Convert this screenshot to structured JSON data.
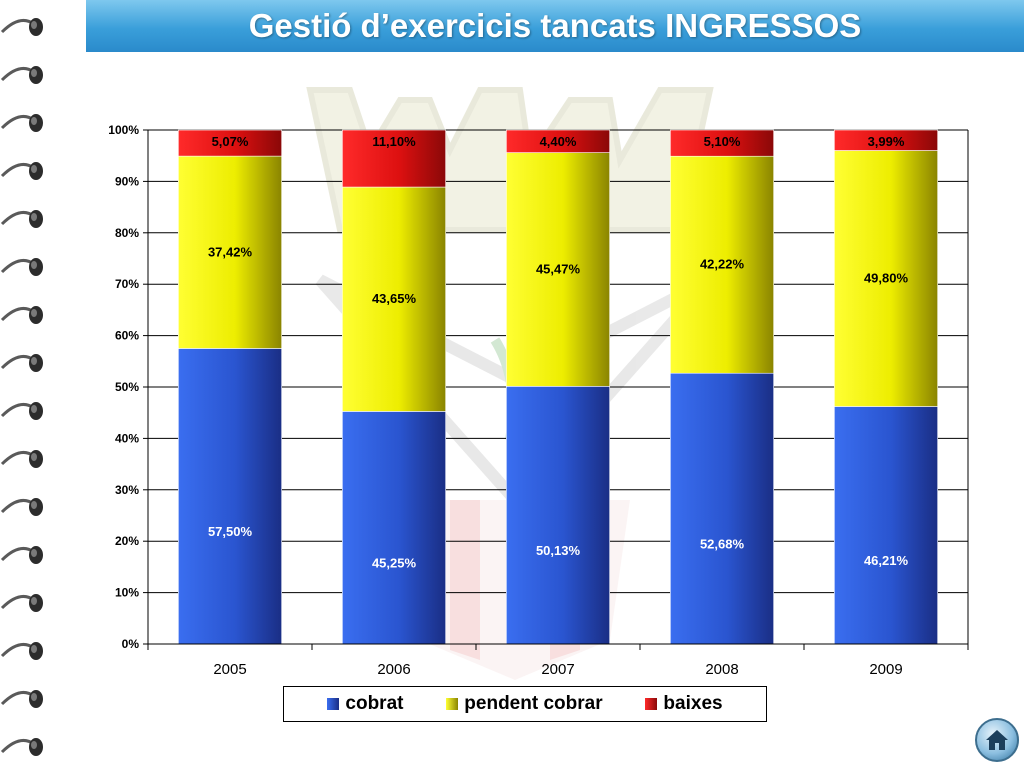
{
  "title": "Gestió d’exercicis tancats INGRESSOS",
  "colors": {
    "cobrat": "#2a55d0",
    "pendent": "#f2f200",
    "baixes": "#e01010",
    "title_bar": "#3a9fda"
  },
  "icons": {
    "home": "home-icon"
  },
  "chart_data": {
    "type": "bar",
    "stacked": true,
    "normalized": true,
    "categories": [
      "2005",
      "2006",
      "2007",
      "2008",
      "2009"
    ],
    "series": [
      {
        "name": "cobrat",
        "values": [
          57.5,
          45.25,
          50.13,
          52.68,
          46.21
        ],
        "labels": [
          "57,50%",
          "45,25%",
          "50,13%",
          "52,68%",
          "46,21%"
        ]
      },
      {
        "name": "pendent cobrar",
        "values": [
          37.42,
          43.65,
          45.47,
          42.22,
          49.8
        ],
        "labels": [
          "37,42%",
          "43,65%",
          "45,47%",
          "42,22%",
          "49,80%"
        ]
      },
      {
        "name": "baixes",
        "values": [
          5.07,
          11.1,
          4.4,
          5.1,
          3.99
        ],
        "labels": [
          "5,07%",
          "11,10%",
          "4,40%",
          "5,10%",
          "3,99%"
        ]
      }
    ],
    "y_ticks": [
      "0%",
      "10%",
      "20%",
      "30%",
      "40%",
      "50%",
      "60%",
      "70%",
      "80%",
      "90%",
      "100%"
    ],
    "ylim": [
      0,
      100
    ],
    "grid": true,
    "legend": [
      "cobrat",
      "pendent cobrar",
      "baixes"
    ],
    "legend_position": "bottom"
  }
}
